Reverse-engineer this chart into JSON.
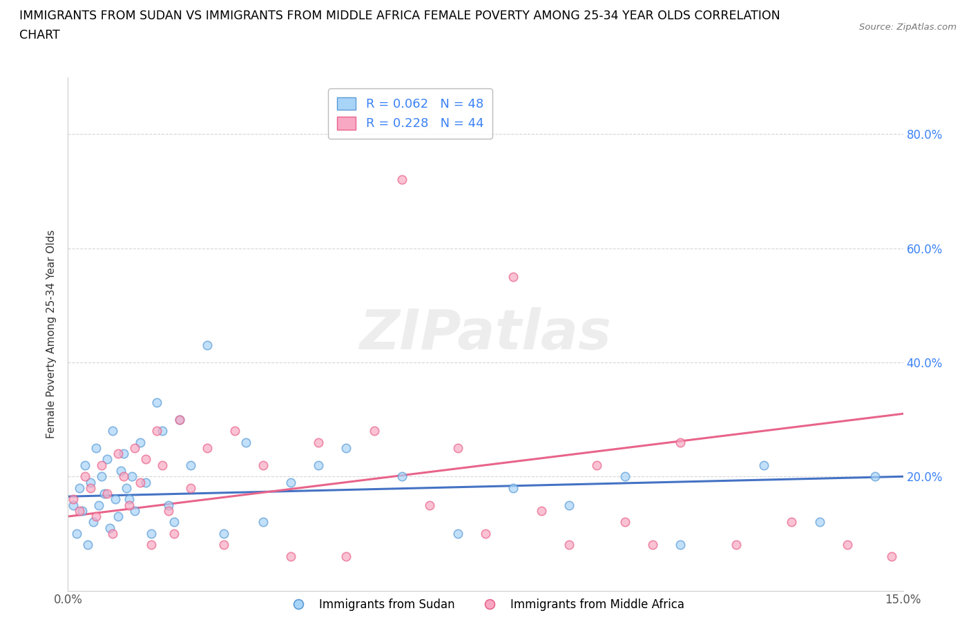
{
  "title_line1": "IMMIGRANTS FROM SUDAN VS IMMIGRANTS FROM MIDDLE AFRICA FEMALE POVERTY AMONG 25-34 YEAR OLDS CORRELATION",
  "title_line2": "CHART",
  "source_text": "Source: ZipAtlas.com",
  "ylabel": "Female Poverty Among 25-34 Year Olds",
  "xlim": [
    0.0,
    15.0
  ],
  "ylim": [
    0.0,
    90.0
  ],
  "yticks": [
    20.0,
    40.0,
    60.0,
    80.0
  ],
  "ytick_labels": [
    "20.0%",
    "40.0%",
    "60.0%",
    "80.0%"
  ],
  "xticks": [
    0.0,
    15.0
  ],
  "xtick_labels": [
    "0.0%",
    "15.0%"
  ],
  "watermark": "ZIPatlas",
  "sudan_color": "#A8D4F8",
  "middle_africa_color": "#F9A8C4",
  "sudan_edge_color": "#5B9BD5",
  "middle_africa_edge_color": "#E8648A",
  "R_sudan": 0.062,
  "N_sudan": 48,
  "R_middle_africa": 0.228,
  "N_middle_africa": 44,
  "legend_R_color": "#3B82F6",
  "sudan_x": [
    0.1,
    0.15,
    0.2,
    0.25,
    0.3,
    0.35,
    0.4,
    0.45,
    0.5,
    0.55,
    0.6,
    0.65,
    0.7,
    0.75,
    0.8,
    0.85,
    0.9,
    0.95,
    1.0,
    1.05,
    1.1,
    1.15,
    1.2,
    1.3,
    1.4,
    1.5,
    1.6,
    1.7,
    1.8,
    1.9,
    2.0,
    2.2,
    2.5,
    2.8,
    3.2,
    3.5,
    4.0,
    4.5,
    5.0,
    6.0,
    7.0,
    8.0,
    9.0,
    10.0,
    11.0,
    12.5,
    13.5,
    14.5
  ],
  "sudan_y": [
    15.0,
    10.0,
    18.0,
    14.0,
    22.0,
    8.0,
    19.0,
    12.0,
    25.0,
    15.0,
    20.0,
    17.0,
    23.0,
    11.0,
    28.0,
    16.0,
    13.0,
    21.0,
    24.0,
    18.0,
    16.0,
    20.0,
    14.0,
    26.0,
    19.0,
    10.0,
    33.0,
    28.0,
    15.0,
    12.0,
    30.0,
    22.0,
    43.0,
    10.0,
    26.0,
    12.0,
    19.0,
    22.0,
    25.0,
    20.0,
    10.0,
    18.0,
    15.0,
    20.0,
    8.0,
    22.0,
    12.0,
    20.0
  ],
  "middle_africa_x": [
    0.1,
    0.2,
    0.3,
    0.4,
    0.5,
    0.6,
    0.7,
    0.8,
    0.9,
    1.0,
    1.1,
    1.2,
    1.3,
    1.4,
    1.5,
    1.6,
    1.7,
    1.8,
    1.9,
    2.0,
    2.2,
    2.5,
    2.8,
    3.0,
    3.5,
    4.0,
    4.5,
    5.0,
    5.5,
    6.0,
    6.5,
    7.0,
    7.5,
    8.0,
    8.5,
    9.0,
    9.5,
    10.0,
    10.5,
    11.0,
    12.0,
    13.0,
    14.0,
    14.8
  ],
  "middle_africa_y": [
    16.0,
    14.0,
    20.0,
    18.0,
    13.0,
    22.0,
    17.0,
    10.0,
    24.0,
    20.0,
    15.0,
    25.0,
    19.0,
    23.0,
    8.0,
    28.0,
    22.0,
    14.0,
    10.0,
    30.0,
    18.0,
    25.0,
    8.0,
    28.0,
    22.0,
    6.0,
    26.0,
    6.0,
    28.0,
    72.0,
    15.0,
    25.0,
    10.0,
    55.0,
    14.0,
    8.0,
    22.0,
    12.0,
    8.0,
    26.0,
    8.0,
    12.0,
    8.0,
    6.0
  ],
  "sudan_line_color": "#4472C4",
  "middle_africa_line_color": "#E8648A",
  "sudan_line_x0": 0.0,
  "sudan_line_y0": 16.5,
  "sudan_line_x1": 15.0,
  "sudan_line_y1": 20.0,
  "middle_africa_line_x0": 0.0,
  "middle_africa_line_y0": 13.0,
  "middle_africa_line_x1": 15.0,
  "middle_africa_line_y1": 31.0
}
